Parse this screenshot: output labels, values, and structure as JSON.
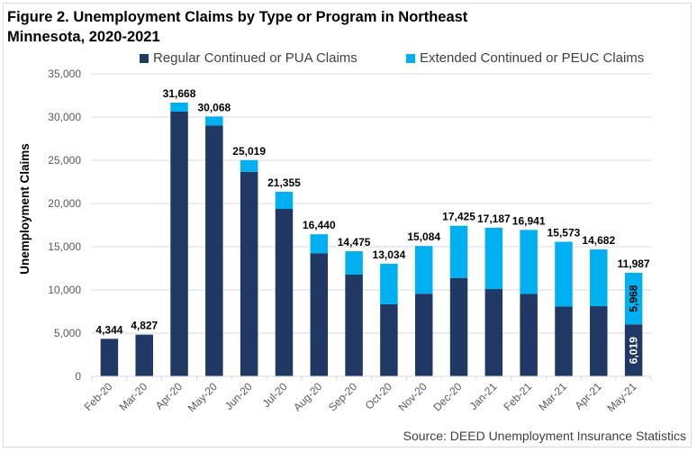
{
  "chart_data": {
    "type": "bar",
    "stacked": true,
    "title": "Figure 2. Unemployment Claims by Type or Program in Northeast Minnesota, 2020-2021",
    "title_lines": [
      "Figure 2. Unemployment Claims by Type or Program in Northeast",
      "Minnesota, 2020-2021"
    ],
    "xlabel": "",
    "ylabel": "Unemployment Claims",
    "ylim": [
      0,
      35000
    ],
    "yticks": [
      0,
      5000,
      10000,
      15000,
      20000,
      25000,
      30000,
      35000
    ],
    "ytick_labels": [
      "0",
      "5,000",
      "10,000",
      "15,000",
      "20,000",
      "25,000",
      "30,000",
      "35,000"
    ],
    "grid": true,
    "legend_position": "top",
    "categories": [
      "Feb-20",
      "Mar-20",
      "Apr-20",
      "May-20",
      "Jun-20",
      "Jul-20",
      "Aug-20",
      "Sep-20",
      "Oct-20",
      "Nov-20",
      "Dec-20",
      "Jan-21",
      "Feb-21",
      "Mar-21",
      "Apr-21",
      "May-21"
    ],
    "series": [
      {
        "name": "Regular Continued or PUA Claims",
        "color": "#203864",
        "values": [
          4344,
          4827,
          30630,
          29030,
          23670,
          19375,
          14250,
          11770,
          8340,
          9560,
          11385,
          10100,
          9540,
          8070,
          8120,
          6019
        ]
      },
      {
        "name": "Extended Continued or PEUC Claims",
        "color": "#00b0f0",
        "values": [
          0,
          0,
          1038,
          1038,
          1349,
          1980,
          2190,
          2705,
          4694,
          5524,
          6040,
          7087,
          7401,
          7503,
          6562,
          5968
        ]
      }
    ],
    "totals": [
      4344,
      4827,
      31668,
      30068,
      25019,
      21355,
      16440,
      14475,
      13034,
      15084,
      17425,
      17187,
      16941,
      15573,
      14682,
      11987
    ],
    "total_labels": [
      "4,344",
      "4,827",
      "31,668",
      "30,068",
      "25,019",
      "21,355",
      "16,440",
      "14,475",
      "13,034",
      "15,084",
      "17,425",
      "17,187",
      "16,941",
      "15,573",
      "14,682",
      "11,987"
    ],
    "annotations": [
      {
        "category": "May-21",
        "series": "Regular Continued or PUA Claims",
        "text": "6,019"
      },
      {
        "category": "May-21",
        "series": "Extended Continued or PEUC Claims",
        "text": "5,968"
      }
    ],
    "source": "Source: DEED Unemployment Insurance Statistics"
  }
}
